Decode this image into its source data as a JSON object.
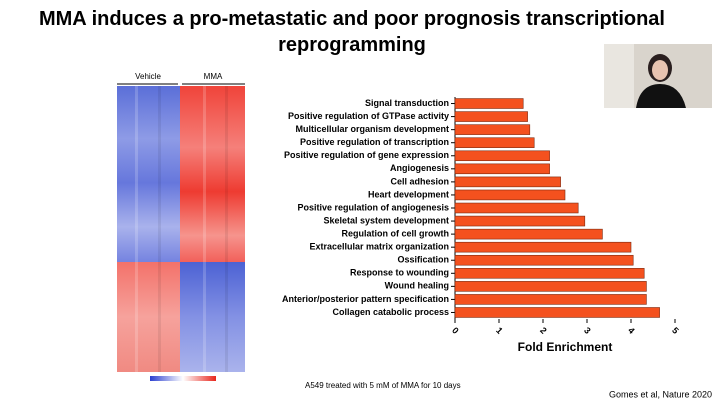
{
  "title": "MMA induces a pro-metastatic and poor prognosis transcriptional reprogramming",
  "heatmap": {
    "labels": [
      "Vehicle",
      "MMA"
    ]
  },
  "caption": "A549 treated with 5 mM of MMA for 10 days",
  "citation": "Gomes et al, Nature 2020",
  "chart_data": {
    "type": "bar",
    "orientation": "horizontal",
    "x_label": "Fold Enrichment",
    "categories": [
      "Signal transduction",
      "Positive regulation of GTPase activity",
      "Multicellular organism development",
      "Positive regulation of transcription",
      "Positive regulation of gene expression",
      "Angiogenesis",
      "Cell adhesion",
      "Heart development",
      "Positive regulation of angiogenesis",
      "Skeletal system development",
      "Regulation of cell growth",
      "Extracellular matrix organization",
      "Ossification",
      "Response to wounding",
      "Wound healing",
      "Anterior/posterior pattern specification",
      "Collagen catabolic process"
    ],
    "values": [
      1.55,
      1.65,
      1.7,
      1.8,
      2.15,
      2.15,
      2.4,
      2.5,
      2.8,
      2.95,
      3.35,
      4.0,
      4.05,
      4.3,
      4.35,
      4.35,
      4.65
    ],
    "color": "#f4511e",
    "xlim": [
      0,
      5
    ],
    "xticks": [
      0,
      1,
      2,
      3,
      4,
      5
    ]
  }
}
